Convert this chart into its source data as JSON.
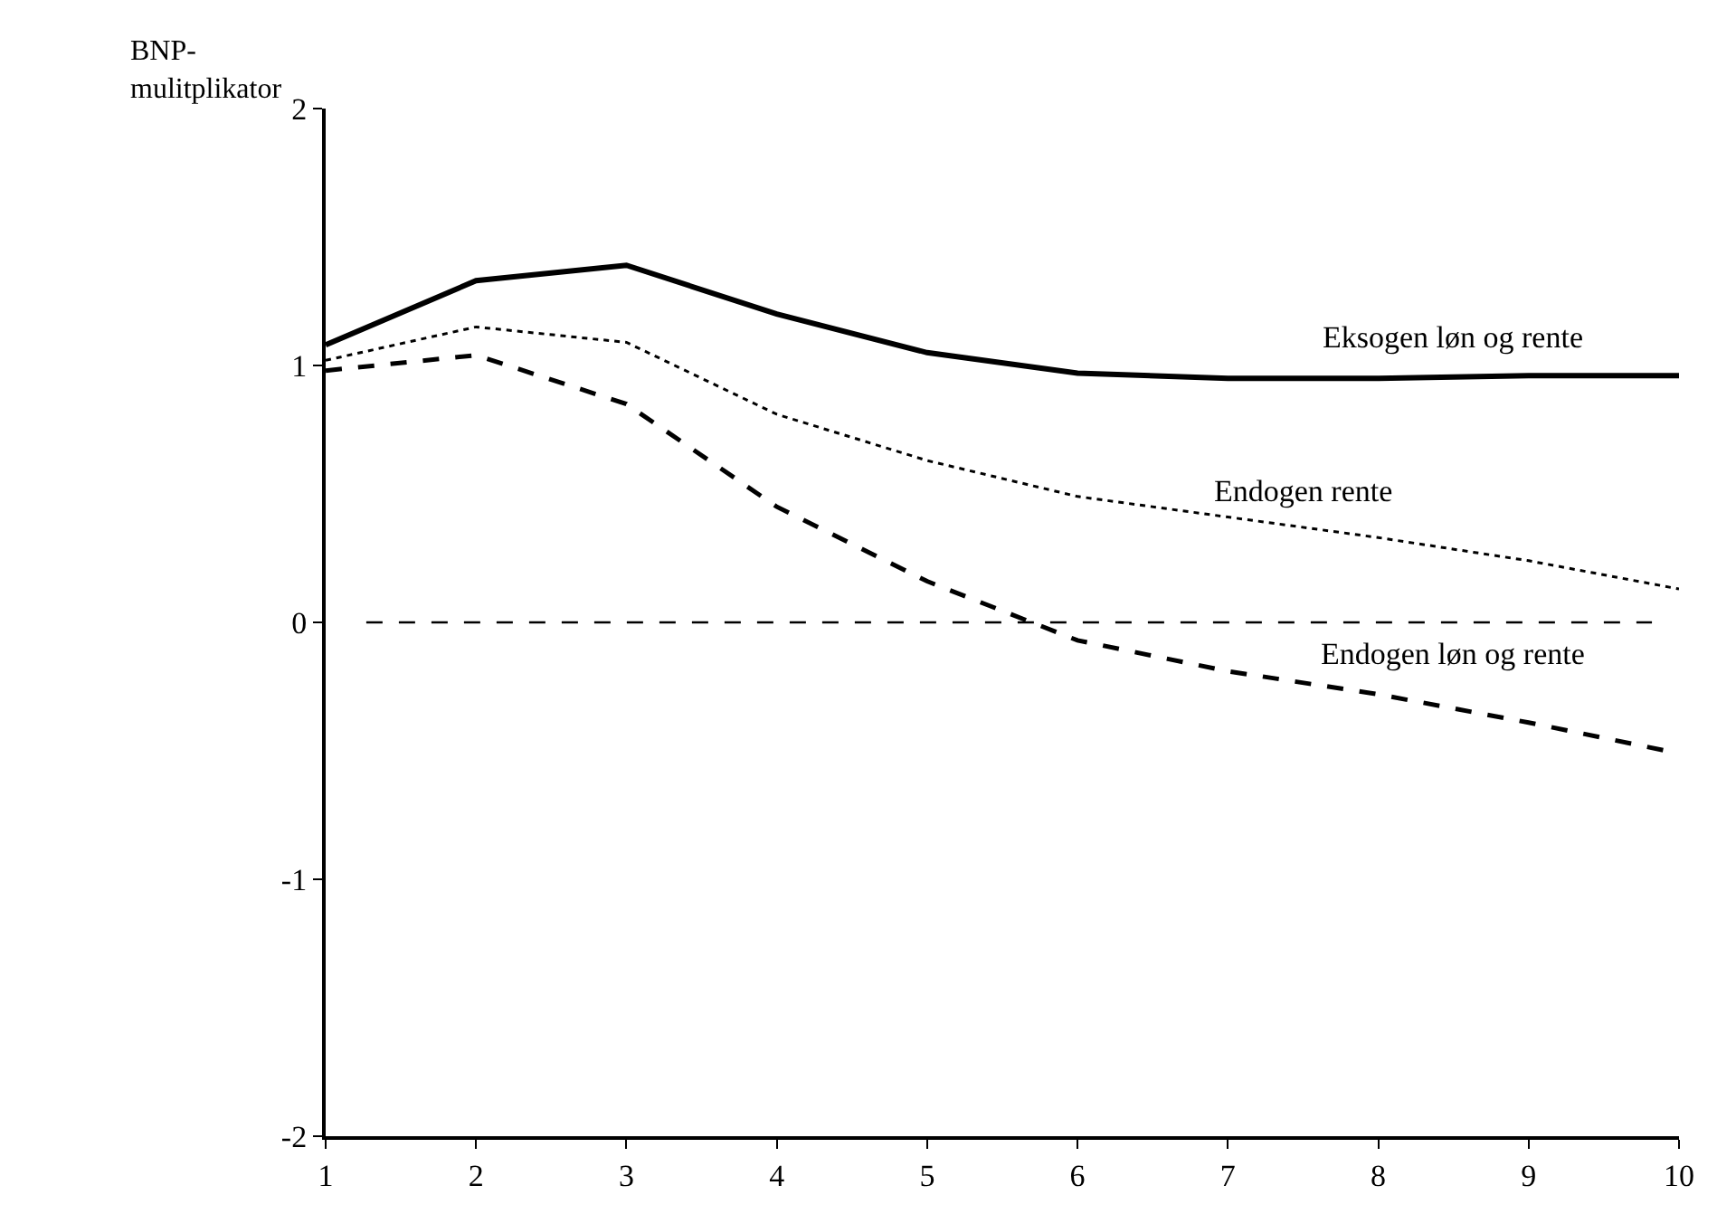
{
  "chart_data": {
    "type": "line",
    "ylabel": "BNP-\nmulitplikator",
    "x": [
      1,
      2,
      3,
      4,
      5,
      6,
      7,
      8,
      9,
      10
    ],
    "series": [
      {
        "name": "Eksogen løn og rente",
        "color": "#000000",
        "line_style": "solid",
        "values": [
          1.08,
          1.33,
          1.39,
          1.2,
          1.05,
          0.97,
          0.95,
          0.95,
          0.96,
          0.96
        ]
      },
      {
        "name": "Endogen rente",
        "color": "#000000",
        "line_style": "dotted",
        "values": [
          1.02,
          1.15,
          1.09,
          0.81,
          0.63,
          0.49,
          0.41,
          0.33,
          0.24,
          0.13
        ]
      },
      {
        "name": "Endogen løn og rente",
        "color": "#000000",
        "line_style": "dashed",
        "values": [
          0.98,
          1.04,
          0.85,
          0.45,
          0.16,
          -0.07,
          -0.19,
          -0.28,
          -0.39,
          -0.51
        ]
      }
    ],
    "xlim": [
      1,
      10
    ],
    "xticks": [
      1,
      2,
      3,
      4,
      5,
      6,
      7,
      8,
      9,
      10
    ],
    "ylim": [
      -2,
      2
    ],
    "yticks": [
      -2,
      -1,
      0,
      1,
      2
    ],
    "ref_lines": [
      {
        "axis": "y",
        "value": 0,
        "color": "#000000",
        "line_style": "dashed"
      }
    ],
    "legend": false,
    "marker": "none"
  }
}
